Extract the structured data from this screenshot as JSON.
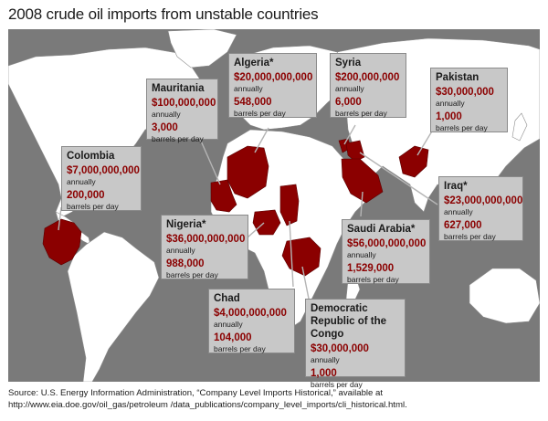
{
  "title": "2008 crude oil imports from unstable countries",
  "colors": {
    "ocean": "#7a7a7a",
    "land": "#ffffff",
    "highlight": "#8b0000",
    "callout_bg": "#c8c8c8",
    "value_text": "#8b0000"
  },
  "annual_unit": "annually",
  "daily_unit": "barrels per day",
  "countries": [
    {
      "id": "mauritania",
      "name": "Mauritania",
      "annual_value": "$100,000,000",
      "barrels_per_day": "3,000"
    },
    {
      "id": "algeria",
      "name": "Algeria*",
      "annual_value": "$20,000,000,000",
      "barrels_per_day": "548,000"
    },
    {
      "id": "syria",
      "name": "Syria",
      "annual_value": "$200,000,000",
      "barrels_per_day": "6,000"
    },
    {
      "id": "pakistan",
      "name": "Pakistan",
      "annual_value": "$30,000,000",
      "barrels_per_day": "1,000"
    },
    {
      "id": "colombia",
      "name": "Colombia",
      "annual_value": "$7,000,000,000",
      "barrels_per_day": "200,000"
    },
    {
      "id": "iraq",
      "name": "Iraq*",
      "annual_value": "$23,000,000,000",
      "barrels_per_day": "627,000"
    },
    {
      "id": "nigeria",
      "name": "Nigeria*",
      "annual_value": "$36,000,000,000",
      "barrels_per_day": "988,000"
    },
    {
      "id": "saudi-arabia",
      "name": "Saudi Arabia*",
      "annual_value": "$56,000,000,000",
      "barrels_per_day": "1,529,000"
    },
    {
      "id": "chad",
      "name": "Chad",
      "annual_value": "$4,000,000,000",
      "barrels_per_day": "104,000"
    },
    {
      "id": "drc",
      "name": "Democratic Republic of the Congo",
      "annual_value": "$30,000,000",
      "barrels_per_day": "1,000"
    }
  ],
  "source_text": "Source: U.S. Energy Information Administration, “Company Level Imports Historical,” available at http://www.eia.doe.gov/oil_gas/petroleum /data_publications/company_level_imports/cli_historical.html."
}
